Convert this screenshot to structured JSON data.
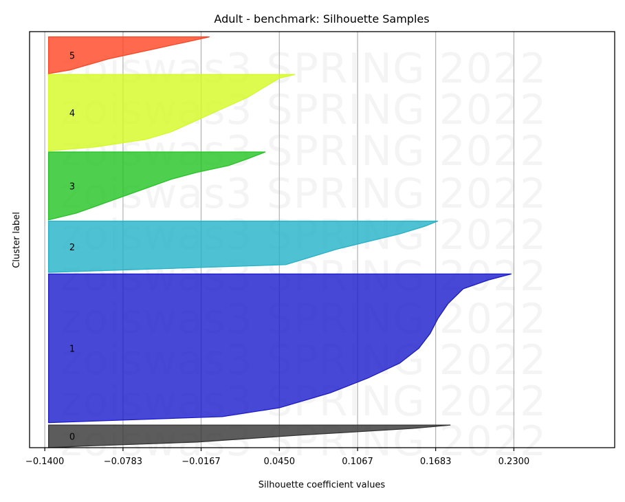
{
  "chart_data": {
    "type": "area",
    "title": "Adult - benchmark: Silhouette Samples",
    "xlabel": "Silhouette coefficient values",
    "ylabel": "Cluster label",
    "xlim": [
      -0.152,
      0.3095
    ],
    "xticks": [
      "-0.1400",
      "-0.0783",
      "-0.0167",
      "0.0450",
      "0.1067",
      "0.1683",
      "0.2300"
    ],
    "xtick_values": [
      -0.14,
      -0.0783,
      -0.0167,
      0.045,
      0.1067,
      0.1683,
      0.23
    ],
    "grid": "x",
    "fill_start": -0.137,
    "watermark": "zoiswas3 SPRING 2022",
    "clusters": [
      {
        "label": "0",
        "color": "#333333",
        "y_range": [
          0,
          5.6
        ],
        "profile": [
          [
            0,
            0.18
          ],
          [
            0.15,
            0.15
          ],
          [
            0.3,
            0.105
          ],
          [
            0.45,
            0.06
          ],
          [
            0.6,
            0.02
          ],
          [
            0.75,
            -0.02
          ],
          [
            0.85,
            -0.07
          ],
          [
            0.93,
            -0.11
          ],
          [
            1,
            -0.137
          ]
        ]
      },
      {
        "label": "1",
        "color": "#1a1acc",
        "y_range": [
          6.2,
          43.0
        ],
        "profile": [
          [
            0,
            0.228
          ],
          [
            0.04,
            0.21
          ],
          [
            0.1,
            0.19
          ],
          [
            0.2,
            0.178
          ],
          [
            0.3,
            0.17
          ],
          [
            0.4,
            0.164
          ],
          [
            0.5,
            0.155
          ],
          [
            0.6,
            0.14
          ],
          [
            0.7,
            0.115
          ],
          [
            0.8,
            0.085
          ],
          [
            0.9,
            0.045
          ],
          [
            0.96,
            0.0
          ],
          [
            1,
            -0.137
          ]
        ]
      },
      {
        "label": "2",
        "color": "#22b2c8",
        "y_range": [
          43.4,
          56.1
        ],
        "profile": [
          [
            0,
            0.17
          ],
          [
            0.1,
            0.16
          ],
          [
            0.25,
            0.14
          ],
          [
            0.4,
            0.115
          ],
          [
            0.55,
            0.09
          ],
          [
            0.7,
            0.07
          ],
          [
            0.85,
            0.05
          ],
          [
            1,
            -0.137
          ]
        ]
      },
      {
        "label": "3",
        "color": "#22c422",
        "y_range": [
          56.4,
          73.2
        ],
        "profile": [
          [
            0,
            0.034
          ],
          [
            0.1,
            0.02
          ],
          [
            0.2,
            0.005
          ],
          [
            0.3,
            -0.02
          ],
          [
            0.4,
            -0.04
          ],
          [
            0.5,
            -0.055
          ],
          [
            0.6,
            -0.07
          ],
          [
            0.7,
            -0.085
          ],
          [
            0.8,
            -0.1
          ],
          [
            0.9,
            -0.115
          ],
          [
            1,
            -0.137
          ]
        ]
      },
      {
        "label": "4",
        "color": "#d4fa22",
        "y_range": [
          73.5,
          92.4
        ],
        "profile": [
          [
            0,
            0.0575
          ],
          [
            0.05,
            0.045
          ],
          [
            0.15,
            0.035
          ],
          [
            0.3,
            0.02
          ],
          [
            0.45,
            0.0
          ],
          [
            0.6,
            -0.02
          ],
          [
            0.75,
            -0.04
          ],
          [
            0.85,
            -0.06
          ],
          [
            0.95,
            -0.1
          ],
          [
            1,
            -0.137
          ]
        ]
      },
      {
        "label": "5",
        "color": "#ff4422",
        "y_range": [
          92.6,
          101.7
        ],
        "profile": [
          [
            0,
            -0.01
          ],
          [
            0.15,
            -0.03
          ],
          [
            0.3,
            -0.05
          ],
          [
            0.45,
            -0.07
          ],
          [
            0.6,
            -0.09
          ],
          [
            0.75,
            -0.105
          ],
          [
            0.9,
            -0.12
          ],
          [
            1,
            -0.137
          ]
        ]
      }
    ]
  }
}
